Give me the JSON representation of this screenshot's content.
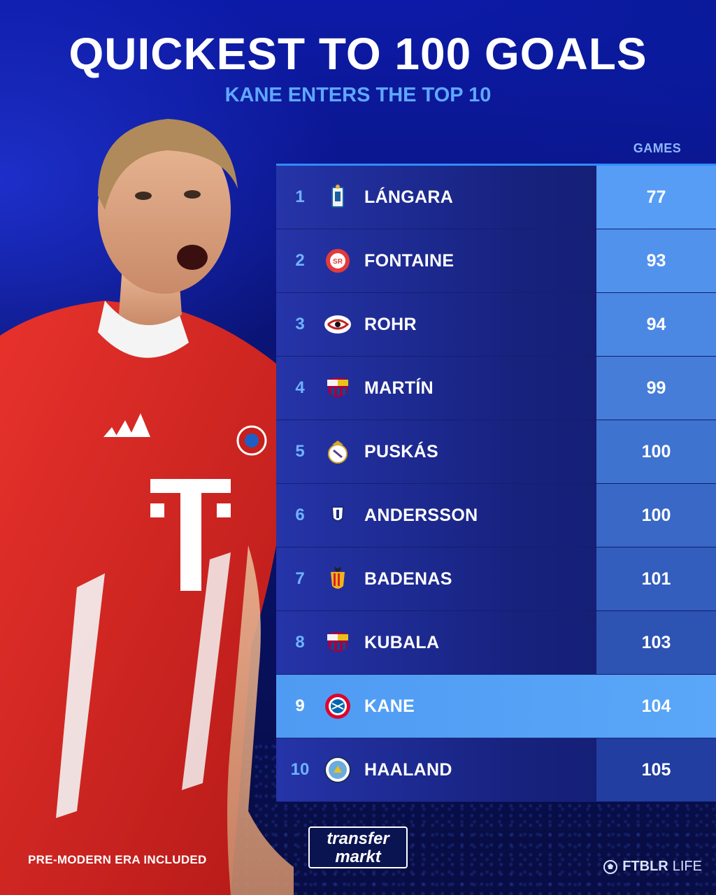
{
  "header": {
    "title": "QUICKEST TO 100 GOALS",
    "subtitle": "KANE ENTERS THE TOP 10"
  },
  "table": {
    "games_header": "GAMES",
    "rows": [
      {
        "rank": "1",
        "name": "LÁNGARA",
        "games": "77",
        "crest": "real-oviedo-crest-icon",
        "highlight": false
      },
      {
        "rank": "2",
        "name": "FONTAINE",
        "games": "93",
        "crest": "stade-reims-crest-icon",
        "highlight": false
      },
      {
        "rank": "3",
        "name": "ROHR",
        "games": "94",
        "crest": "ogc-nice-crest-icon",
        "highlight": false
      },
      {
        "rank": "4",
        "name": "MARTÍN",
        "games": "99",
        "crest": "fc-barcelona-crest-icon",
        "highlight": false
      },
      {
        "rank": "5",
        "name": "PUSKÁS",
        "games": "100",
        "crest": "real-madrid-crest-icon",
        "highlight": false
      },
      {
        "rank": "6",
        "name": "ANDERSSON",
        "games": "100",
        "crest": "shield-crest-icon",
        "highlight": false
      },
      {
        "rank": "7",
        "name": "BADENAS",
        "games": "101",
        "crest": "valencia-crest-icon",
        "highlight": false
      },
      {
        "rank": "8",
        "name": "KUBALA",
        "games": "103",
        "crest": "fc-barcelona-crest-icon",
        "highlight": false
      },
      {
        "rank": "9",
        "name": "KANE",
        "games": "104",
        "crest": "bayern-munich-crest-icon",
        "highlight": true
      },
      {
        "rank": "10",
        "name": "HAALAND",
        "games": "105",
        "crest": "manchester-city-crest-icon",
        "highlight": false
      }
    ]
  },
  "footer": {
    "note": "PRE-MODERN ERA INCLUDED",
    "logo_line1": "transfer",
    "logo_line2": "markt",
    "brand_bold": "FTBLR",
    "brand_light": "LIFE"
  },
  "colors": {
    "accent": "#5fa8ff",
    "highlight": "#5aa6f8",
    "row": "#17227e",
    "background": "#0a1478"
  }
}
